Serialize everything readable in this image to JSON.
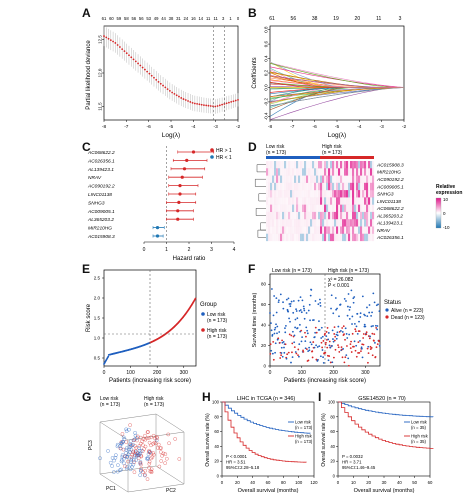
{
  "panels": {
    "A": {
      "label": "A",
      "top_ticks": [
        "61",
        "60",
        "59",
        "58",
        "56",
        "56",
        "53",
        "49",
        "44",
        "38",
        "31",
        "24",
        "16",
        "14",
        "11",
        "11",
        "3",
        "1",
        "0"
      ],
      "ylabel": "Partial likelihood deviance",
      "yticks": [
        "11.5",
        "12.0",
        "12.5"
      ],
      "xlabel": "Log(λ)",
      "xticks": [
        "-8",
        "-7",
        "-6",
        "-5",
        "-4",
        "-3",
        "-2"
      ],
      "chart_data": {
        "type": "line",
        "x": [
          -8,
          -7.5,
          -7,
          -6.5,
          -6,
          -5.5,
          -5,
          -4.5,
          -4,
          -3.5,
          -3,
          -2.5,
          -2
        ],
        "values": [
          12.55,
          12.45,
          12.3,
          12.15,
          12.0,
          11.85,
          11.72,
          11.62,
          11.55,
          11.52,
          11.5,
          11.55,
          11.6
        ],
        "ylim": [
          11.3,
          12.7
        ],
        "xlim": [
          -8,
          -2
        ]
      }
    },
    "B": {
      "label": "B",
      "top_ticks": [
        "61",
        "56",
        "38",
        "19",
        "20",
        "11",
        "3"
      ],
      "ylabel": "Coefficients",
      "yticks": [
        "-0.4",
        "-0.2",
        "0.0",
        "0.2",
        "0.4",
        "0.6",
        "0.8"
      ],
      "xlabel": "Log(λ)",
      "xticks": [
        "-8",
        "-7",
        "-6",
        "-5",
        "-4",
        "-3",
        "-2"
      ]
    },
    "C": {
      "label": "C",
      "legend": [
        "HR > 1",
        "HR < 1"
      ],
      "genes": [
        "AC068622.2",
        "AC026356.1",
        "AL139423.1",
        "NRAV",
        "AC090192.2",
        "LINC01138",
        "SNHG3",
        "AC009005.1",
        "AL365203.2",
        "MIR210HG",
        "AC015908.3"
      ],
      "xlabel": "Hazard ratio",
      "xticks": [
        "0",
        "1",
        "2",
        "3",
        "4"
      ],
      "colors": {
        "up": "#d62728",
        "down": "#1f77b4"
      },
      "chart_data": {
        "type": "scatter",
        "hr": [
          2.2,
          1.9,
          1.8,
          1.7,
          1.6,
          1.6,
          1.55,
          1.5,
          1.5,
          0.6,
          0.6
        ],
        "lo": [
          1.5,
          1.3,
          1.2,
          1.1,
          1.1,
          1.1,
          1.0,
          1.0,
          1.0,
          0.4,
          0.4
        ],
        "hi": [
          3.1,
          2.8,
          2.7,
          2.6,
          2.4,
          2.3,
          2.3,
          2.2,
          2.2,
          0.9,
          0.85
        ],
        "xlim": [
          0,
          4
        ]
      }
    },
    "D": {
      "label": "D",
      "low_group": "Low risk\n(n = 173)",
      "high_group": "High risk\n(n = 173)",
      "genes": [
        "AC015908.3",
        "MIR210HG",
        "AC090192.2",
        "AC009005.1",
        "SNHG3",
        "LINC01138",
        "AC068622.2",
        "AL365203.2",
        "AL139423.1",
        "NRAV",
        "AC026356.1"
      ],
      "legend_title": "Relative\nexpression",
      "legend_ticks": [
        "10",
        "0",
        "-10"
      ]
    },
    "E": {
      "label": "E",
      "ylabel": "Risk score",
      "yticks": [
        "0.5",
        "1.0",
        "1.5",
        "2.0",
        "2.5"
      ],
      "xlabel": "Patients (increasing risk score)",
      "xticks": [
        "0",
        "100",
        "200",
        "300"
      ],
      "legend_title": "Group",
      "legend": [
        "Low risk\n(n = 173)",
        "High risk\n(n = 173)"
      ],
      "colors": {
        "low": "#1f5fbf",
        "high": "#d62728"
      }
    },
    "F": {
      "label": "F",
      "low_group": "Low risk (n = 173)",
      "high_group": "High risk (n = 173)",
      "stat": "χ² = 26.082\nP < 0.001",
      "ylabel": "Survival time (months)",
      "yticks": [
        "0",
        "20",
        "40",
        "60",
        "80"
      ],
      "xlabel": "Patients (increasing risk score)",
      "xticks": [
        "0",
        "100",
        "200",
        "300"
      ],
      "legend_title": "Status",
      "legend": [
        "Alive (n = 223)",
        "Dead (n = 123)"
      ],
      "colors": {
        "alive": "#1f5fbf",
        "dead": "#d62728"
      }
    },
    "G": {
      "label": "G",
      "low_group": "Low risk\n(n = 173)",
      "high_group": "High risk\n(n = 173)",
      "axis_labels": [
        "PC1",
        "PC2",
        "PC3"
      ]
    },
    "H": {
      "label": "H",
      "title": "LIHC in TCGA (n = 346)",
      "ylabel": "Overall survival rate (%)",
      "yticks": [
        "0",
        "20",
        "40",
        "60",
        "80",
        "100"
      ],
      "xlabel": "Overall survival (months)",
      "xticks": [
        "0",
        "20",
        "40",
        "60",
        "80",
        "100",
        "120"
      ],
      "legend": [
        "Low risk\n(n = 173)",
        "High risk\n(n = 173)"
      ],
      "stat": "P < 0.0001\nHR = 3.51\n95%CI:2.28–5.18",
      "colors": {
        "low": "#1f5fbf",
        "high": "#d62728"
      }
    },
    "I": {
      "label": "I",
      "title": "GSE14520 (n = 70)",
      "ylabel": "Overall survival rate (%)",
      "yticks": [
        "0",
        "20",
        "40",
        "60",
        "80",
        "100"
      ],
      "xlabel": "Overall survival (months)",
      "xticks": [
        "0",
        "10",
        "20",
        "30",
        "40",
        "50",
        "60"
      ],
      "legend": [
        "Low risk\n(n = 35)",
        "High risk\n(n = 35)"
      ],
      "stat": "P = 0.0032\nHR = 3.71\n95%CI:1.46–9.45",
      "colors": {
        "low": "#1f5fbf",
        "high": "#d62728"
      }
    }
  }
}
